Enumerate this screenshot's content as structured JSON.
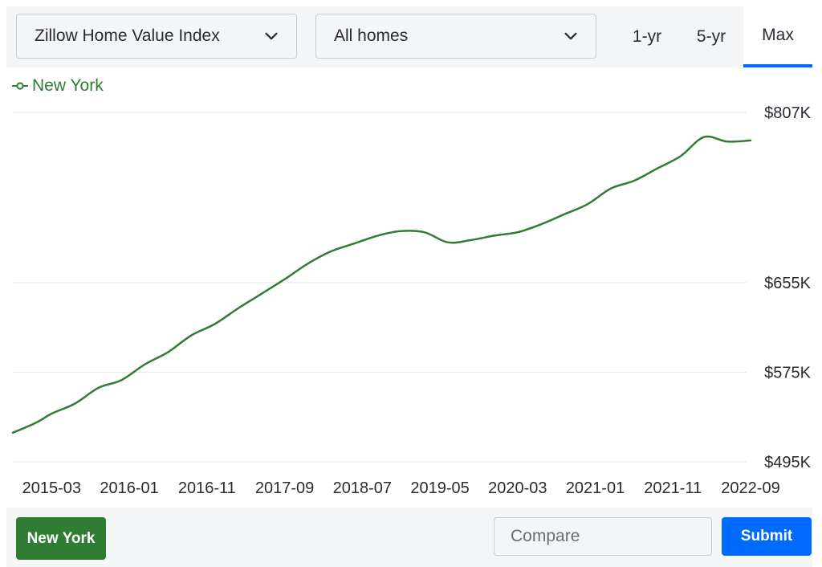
{
  "controls": {
    "metric_select": "Zillow Home Value Index",
    "home_type_select": "All homes",
    "ranges": [
      "1-yr",
      "5-yr",
      "Max"
    ],
    "selected_range": "Max"
  },
  "footer": {
    "region_button": "New York",
    "compare_placeholder": "Compare",
    "submit_label": "Submit"
  },
  "colors": {
    "series": "#2e7d32",
    "accent": "#006aff",
    "gridline": "#e6e6e6"
  },
  "chart_data": {
    "type": "line",
    "title": "",
    "xlabel": "",
    "ylabel": "",
    "legend_position": "top-left",
    "grid": true,
    "y_ticks": [
      {
        "value": 495,
        "label": "$495K"
      },
      {
        "value": 575,
        "label": "$575K"
      },
      {
        "value": 655,
        "label": "$655K"
      },
      {
        "value": 807,
        "label": "$807K"
      }
    ],
    "x_ticks": [
      "2015-03",
      "2016-01",
      "2016-11",
      "2017-09",
      "2018-07",
      "2019-05",
      "2020-03",
      "2021-01",
      "2021-11",
      "2022-09"
    ],
    "ylim": [
      495,
      807
    ],
    "xlim": [
      "2014-10",
      "2022-09"
    ],
    "series": [
      {
        "name": "New York",
        "x": [
          "2014-10",
          "2015-01",
          "2015-03",
          "2015-06",
          "2015-09",
          "2015-12",
          "2016-03",
          "2016-06",
          "2016-09",
          "2016-12",
          "2017-03",
          "2017-06",
          "2017-09",
          "2017-12",
          "2018-03",
          "2018-06",
          "2018-09",
          "2018-12",
          "2019-03",
          "2019-06",
          "2019-09",
          "2019-12",
          "2020-03",
          "2020-06",
          "2020-09",
          "2020-12",
          "2021-03",
          "2021-06",
          "2021-09",
          "2021-12",
          "2022-03",
          "2022-06",
          "2022-09"
        ],
        "values": [
          521,
          530,
          538,
          547,
          561,
          568,
          582,
          593,
          608,
          618,
          632,
          645,
          658,
          672,
          683,
          690,
          697,
          701,
          700,
          691,
          693,
          697,
          700,
          707,
          716,
          725,
          739,
          746,
          757,
          768,
          785,
          781,
          782
        ]
      }
    ]
  }
}
